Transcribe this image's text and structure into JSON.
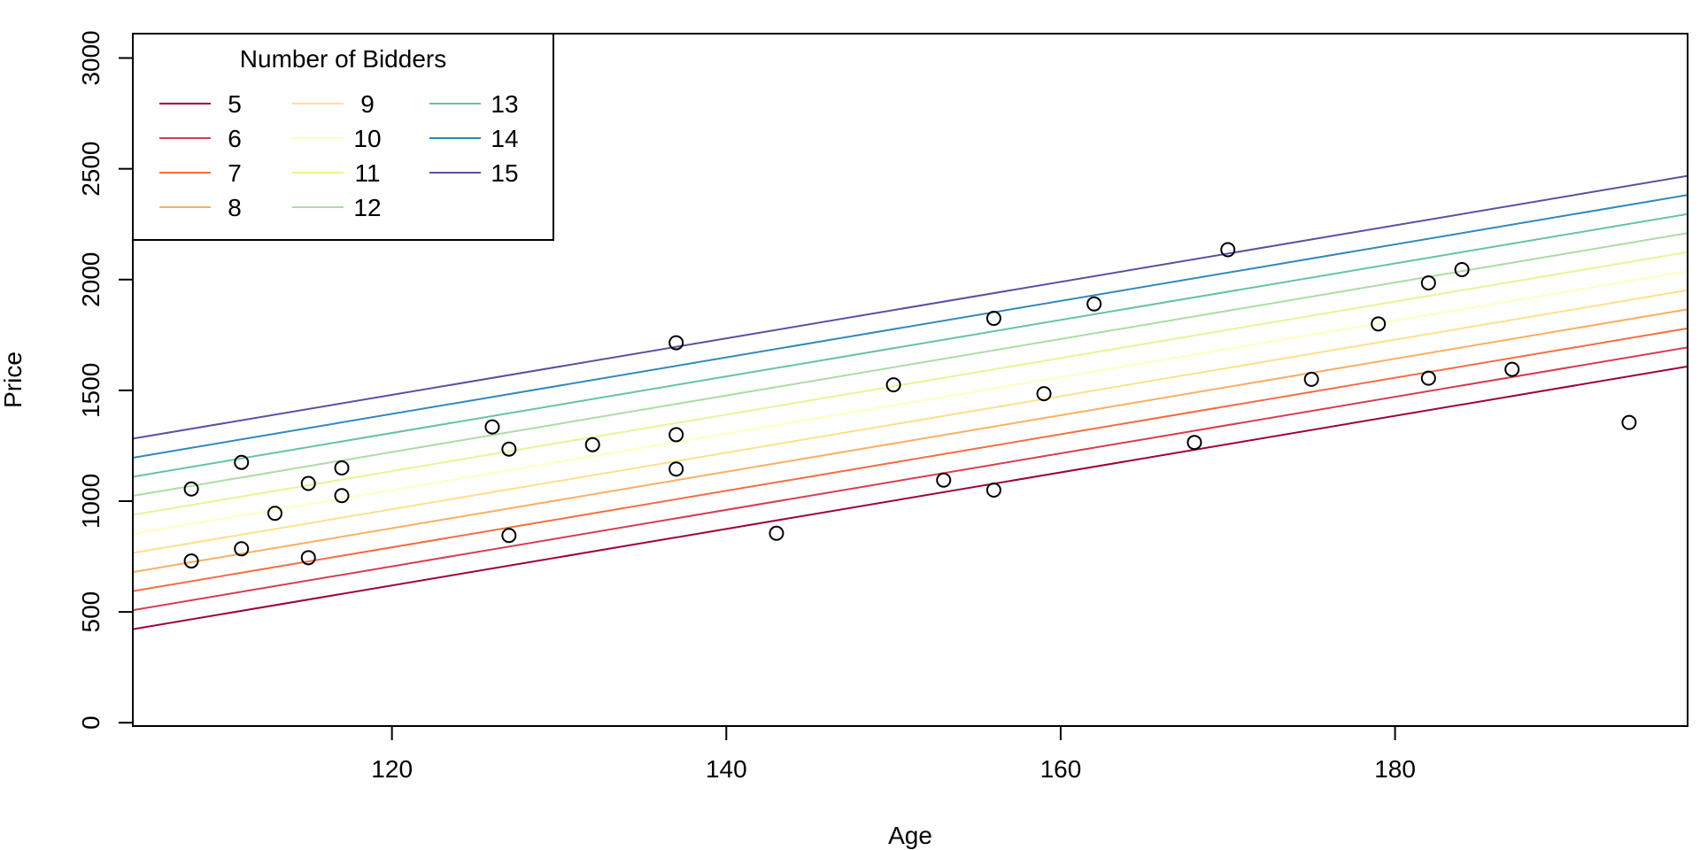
{
  "chart_data": {
    "type": "scatter",
    "xlabel": "Age",
    "ylabel": "Price",
    "xlim": [
      104.5,
      197.5
    ],
    "ylim": [
      -15,
      3110
    ],
    "x_ticks": [
      120,
      140,
      160,
      180
    ],
    "y_ticks": [
      0,
      500,
      1000,
      1500,
      2000,
      2500,
      3000
    ],
    "grid": false,
    "points": [
      {
        "x": 108,
        "y": 730
      },
      {
        "x": 108,
        "y": 1055
      },
      {
        "x": 111,
        "y": 785
      },
      {
        "x": 111,
        "y": 1175
      },
      {
        "x": 113,
        "y": 945
      },
      {
        "x": 115,
        "y": 745
      },
      {
        "x": 115,
        "y": 1080
      },
      {
        "x": 117,
        "y": 1025
      },
      {
        "x": 117,
        "y": 1150
      },
      {
        "x": 126,
        "y": 1335
      },
      {
        "x": 127,
        "y": 845
      },
      {
        "x": 127,
        "y": 1235
      },
      {
        "x": 132,
        "y": 1255
      },
      {
        "x": 137,
        "y": 1715
      },
      {
        "x": 137,
        "y": 1300
      },
      {
        "x": 137,
        "y": 1145
      },
      {
        "x": 143,
        "y": 855
      },
      {
        "x": 150,
        "y": 1525
      },
      {
        "x": 153,
        "y": 1095
      },
      {
        "x": 156,
        "y": 1825
      },
      {
        "x": 156,
        "y": 1050
      },
      {
        "x": 159,
        "y": 1485
      },
      {
        "x": 162,
        "y": 1890
      },
      {
        "x": 168,
        "y": 1265
      },
      {
        "x": 170,
        "y": 2135
      },
      {
        "x": 175,
        "y": 1550
      },
      {
        "x": 179,
        "y": 1800
      },
      {
        "x": 182,
        "y": 1985
      },
      {
        "x": 182,
        "y": 1555
      },
      {
        "x": 184,
        "y": 2045
      },
      {
        "x": 187,
        "y": 1595
      },
      {
        "x": 194,
        "y": 1355
      }
    ],
    "series": [
      {
        "name": "5",
        "color": "#9E0142",
        "x": [
          104.5,
          197.5
        ],
        "y": [
          422,
          1608
        ]
      },
      {
        "name": "6",
        "color": "#D53E4F",
        "x": [
          104.5,
          197.5
        ],
        "y": [
          508,
          1694
        ]
      },
      {
        "name": "7",
        "color": "#F46D43",
        "x": [
          104.5,
          197.5
        ],
        "y": [
          594,
          1780
        ]
      },
      {
        "name": "8",
        "color": "#FDAE61",
        "x": [
          104.5,
          197.5
        ],
        "y": [
          680,
          1866
        ]
      },
      {
        "name": "9",
        "color": "#FEE08B",
        "x": [
          104.5,
          197.5
        ],
        "y": [
          766,
          1952
        ]
      },
      {
        "name": "10",
        "color": "#FFFFBF",
        "x": [
          104.5,
          197.5
        ],
        "y": [
          852,
          2038
        ]
      },
      {
        "name": "11",
        "color": "#E6F598",
        "x": [
          104.5,
          197.5
        ],
        "y": [
          938,
          2124
        ]
      },
      {
        "name": "12",
        "color": "#ABDDA4",
        "x": [
          104.5,
          197.5
        ],
        "y": [
          1024,
          2210
        ]
      },
      {
        "name": "13",
        "color": "#66C2A5",
        "x": [
          104.5,
          197.5
        ],
        "y": [
          1110,
          2296
        ]
      },
      {
        "name": "14",
        "color": "#3288BD",
        "x": [
          104.5,
          197.5
        ],
        "y": [
          1196,
          2382
        ]
      },
      {
        "name": "15",
        "color": "#5E4FA2",
        "x": [
          104.5,
          197.5
        ],
        "y": [
          1282,
          2468
        ]
      }
    ],
    "legend": {
      "title": "Number of Bidders",
      "placement": "top-left",
      "columns": 3
    }
  }
}
